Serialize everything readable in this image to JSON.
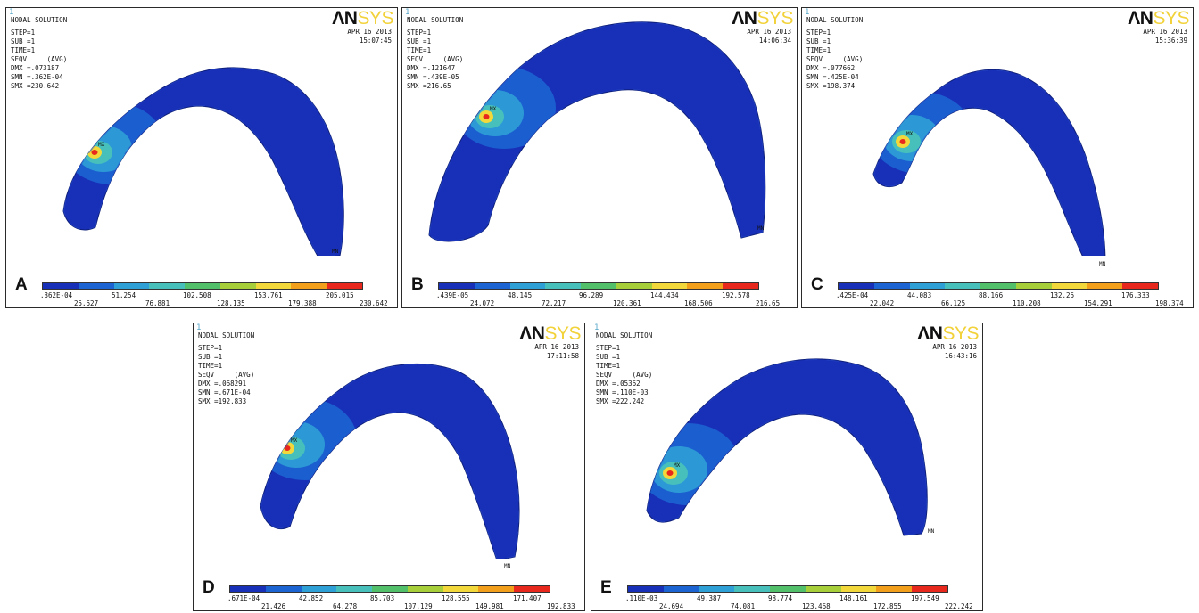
{
  "colormap": [
    "#1830b8",
    "#1c64d2",
    "#2fa0d6",
    "#47c0bc",
    "#52c06a",
    "#a6cf3a",
    "#f2d83a",
    "#f2a01c",
    "#e8281c"
  ],
  "panels": [
    {
      "letter": "A",
      "index": "1",
      "title": "NODAL SOLUTION",
      "lines": [
        "STEP=1",
        "SUB =1",
        "TIME=1",
        "SEQV     (AVG)",
        "DMX =.073187",
        "SMN =.362E-04",
        "SMX =230.642"
      ],
      "logo_a": "ΛN",
      "logo_b": "SYS",
      "date": "APR 16 2013",
      "time": "15:07:45",
      "mx": "MX",
      "mn": "MN",
      "legend_top": [
        ".362E-04",
        "51.254",
        "102.508",
        "153.761",
        "205.015"
      ],
      "legend_bottom": [
        "25.627",
        "76.881",
        "128.135",
        "179.388",
        "230.642"
      ]
    },
    {
      "letter": "B",
      "index": "1",
      "title": "NODAL SOLUTION",
      "lines": [
        "STEP=1",
        "SUB =1",
        "TIME=1",
        "SEQV     (AVG)",
        "DMX =.121647",
        "SMN =.439E-05",
        "SMX =216.65"
      ],
      "logo_a": "ΛN",
      "logo_b": "SYS",
      "date": "APR 16 2013",
      "time": "14:06:34",
      "mx": "MX",
      "mn": "MN",
      "legend_top": [
        ".439E-05",
        "48.145",
        "96.289",
        "144.434",
        "192.578"
      ],
      "legend_bottom": [
        "24.072",
        "72.217",
        "120.361",
        "168.506",
        "216.65"
      ]
    },
    {
      "letter": "C",
      "index": "1",
      "title": "NODAL SOLUTION",
      "lines": [
        "STEP=1",
        "SUB =1",
        "TIME=1",
        "SEQV     (AVG)",
        "DMX =.077662",
        "SMN =.425E-04",
        "SMX =198.374"
      ],
      "logo_a": "ΛN",
      "logo_b": "SYS",
      "date": "APR 16 2013",
      "time": "15:36:39",
      "mx": "MX",
      "mn": "MN",
      "legend_top": [
        ".425E-04",
        "44.083",
        "88.166",
        "132.25",
        "176.333"
      ],
      "legend_bottom": [
        "22.042",
        "66.125",
        "110.208",
        "154.291",
        "198.374"
      ]
    },
    {
      "letter": "D",
      "index": "1",
      "title": "NODAL SOLUTION",
      "lines": [
        "STEP=1",
        "SUB =1",
        "TIME=1",
        "SEQV     (AVG)",
        "DMX =.068291",
        "SMN =.671E-04",
        "SMX =192.833"
      ],
      "logo_a": "ΛN",
      "logo_b": "SYS",
      "date": "APR 16 2013",
      "time": "17:11:58",
      "mx": "MX",
      "mn": "MN",
      "legend_top": [
        ".671E-04",
        "42.852",
        "85.703",
        "128.555",
        "171.407"
      ],
      "legend_bottom": [
        "21.426",
        "64.278",
        "107.129",
        "149.981",
        "192.833"
      ]
    },
    {
      "letter": "E",
      "index": "1",
      "title": "NODAL SOLUTION",
      "lines": [
        "STEP=1",
        "SUB =1",
        "TIME=1",
        "SEQV     (AVG)",
        "DMX =.05362",
        "SMN =.110E-03",
        "SMX =222.242"
      ],
      "logo_a": "ΛN",
      "logo_b": "SYS",
      "date": "APR 16 2013",
      "time": "16:43:16",
      "mx": "MX",
      "mn": "MN",
      "legend_top": [
        ".110E-03",
        "49.387",
        "98.774",
        "148.161",
        "197.549"
      ],
      "legend_bottom": [
        "24.694",
        "74.081",
        "123.468",
        "172.855",
        "222.242"
      ]
    }
  ]
}
